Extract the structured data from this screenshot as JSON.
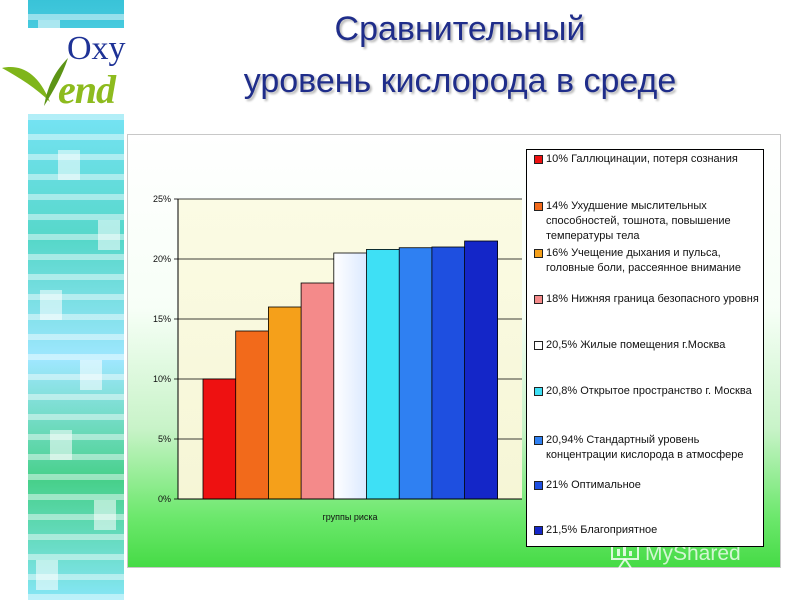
{
  "title": {
    "line1": "Сравнительный",
    "line2": "уровень кислорода в среде"
  },
  "logo": {
    "top": "Oxy",
    "bottom": "Vend"
  },
  "watermark": "MyShared",
  "chart_data": {
    "type": "bar",
    "xlabel": "группы риска",
    "ylabel": "",
    "ylim": [
      0,
      25
    ],
    "yticks": [
      "0%",
      "5%",
      "10%",
      "15%",
      "20%",
      "25%"
    ],
    "ytick_values": [
      0,
      5,
      10,
      15,
      20,
      25
    ],
    "grid": true,
    "legend_position": "right",
    "values": [
      10,
      14,
      16,
      18,
      20.5,
      20.8,
      20.94,
      21,
      21.5
    ],
    "series": [
      {
        "name": "10%    Галлюцинации, потеря сознания",
        "value": 10,
        "color": "#ee1111"
      },
      {
        "name": "14% Ухудшение мыслительных способностей, тошнота, повышение температуры тела",
        "value": 14,
        "color": "#f26a1b"
      },
      {
        "name": "16% Учещение дыхания и пульса, головные боли, рассеянное внимание",
        "value": 16,
        "color": "#f5a01a"
      },
      {
        "name": "18% Нижняя граница безопасного уровня",
        "value": 18,
        "color": "#f48a8a"
      },
      {
        "name": "20,5% Жилые помещения г.Москва",
        "value": 20.5,
        "color": "#ffffff"
      },
      {
        "name": "20,8% Открытое пространство г. Москва",
        "value": 20.8,
        "color": "#3ee0f5"
      },
      {
        "name": "20,94% Стандартный уровень концентрации кислорода в атмосфере",
        "value": 20.94,
        "color": "#2f80f2"
      },
      {
        "name": "21%  Оптимальное",
        "value": 21,
        "color": "#1e4fe0"
      },
      {
        "name": "21,5% Благоприятное",
        "value": 21.5,
        "color": "#1426c8"
      }
    ]
  }
}
